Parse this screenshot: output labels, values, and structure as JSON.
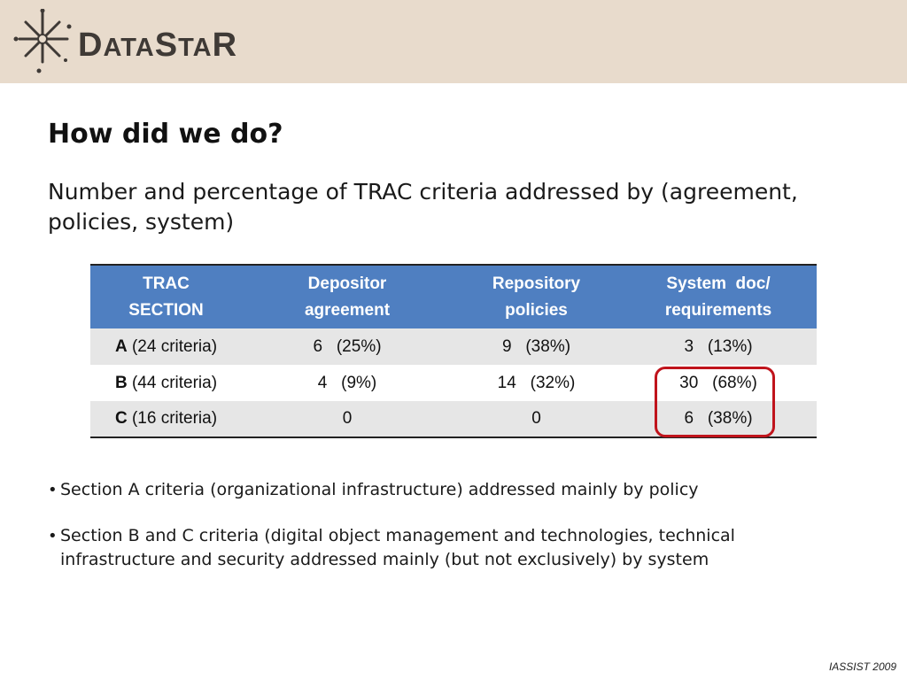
{
  "header": {
    "logo": {
      "first": "D",
      "rest1": "ATA",
      "mid": "S",
      "rest2": "TA",
      "last": "R"
    },
    "icon": "star-burst-icon",
    "band_color": "#e8dbcc"
  },
  "slide": {
    "title": "How did we do?",
    "subtitle": "Number and percentage of TRAC criteria addressed by (agreement, policies, system)"
  },
  "table": {
    "header_color": "#4f7fc1",
    "highlight_color": "#c0141c",
    "columns": [
      {
        "line1": "TRAC",
        "line2": "SECTION"
      },
      {
        "line1": "Depositor",
        "line2": "agreement"
      },
      {
        "line1": "Repository",
        "line2": "policies"
      },
      {
        "line1": "System  doc/",
        "line2": "requirements"
      }
    ],
    "rows": [
      {
        "letter": "A",
        "criteria": " (24 criteria)",
        "depositor": "6   (25%)",
        "policies": "9   (38%)",
        "system": "3   (13%)"
      },
      {
        "letter": "B",
        "criteria": " (44 criteria)",
        "depositor": "4   (9%)",
        "policies": "14   (32%)",
        "system": "30   (68%)"
      },
      {
        "letter": "C",
        "criteria": " (16 criteria)",
        "depositor": "0",
        "policies": "0",
        "system": "6   (38%)"
      }
    ]
  },
  "bullets": [
    {
      "marker": "•",
      "text": "Section A criteria (organizational infrastructure) addressed mainly by policy"
    },
    {
      "marker": "•",
      "text": "Section B and C criteria (digital object management and technologies, technical infrastructure and security addressed mainly (but not exclusively) by system"
    }
  ],
  "footer": {
    "text": "IASSIST 2009"
  }
}
